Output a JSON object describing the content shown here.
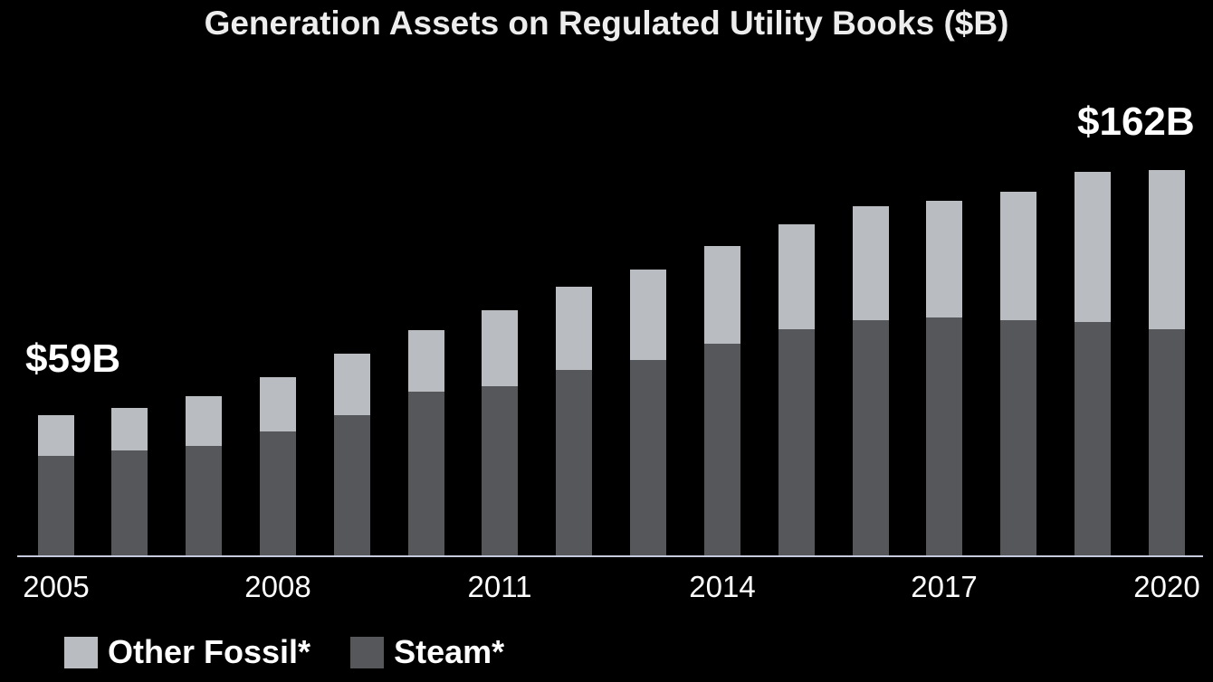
{
  "title": "Generation Assets on Regulated Utility Books ($B)",
  "chart_data": {
    "type": "bar",
    "stacked": true,
    "title": "Generation Assets on Regulated Utility Books ($B)",
    "background": "#000000",
    "axis_color": "#c5cade",
    "grid": false,
    "legend_position": "bottom-left",
    "ylim": [
      0,
      170
    ],
    "categories": [
      "2005",
      "2006",
      "2007",
      "2008",
      "2009",
      "2010",
      "2011",
      "2012",
      "2013",
      "2014",
      "2015",
      "2016",
      "2017",
      "2018",
      "2019",
      "2020"
    ],
    "series": [
      {
        "name": "Other Fossil*",
        "color": "#b9bcc1",
        "values": [
          17,
          18,
          21,
          23,
          26,
          26,
          32,
          35,
          38,
          41,
          44,
          48,
          49,
          54,
          63,
          67
        ]
      },
      {
        "name": "Steam*",
        "color": "#55575a",
        "values": [
          42,
          44,
          46,
          52,
          59,
          69,
          71,
          78,
          82,
          89,
          95,
          99,
          100,
          99,
          98,
          95
        ]
      }
    ],
    "totals": [
      59,
      62,
      67,
      75,
      85,
      95,
      103,
      113,
      120,
      130,
      139,
      147,
      149,
      153,
      161,
      162
    ],
    "x_tick_labels": [
      "2005",
      "2008",
      "2011",
      "2014",
      "2017",
      "2020"
    ],
    "annotations": [
      {
        "text": "$59B",
        "category": "2005",
        "position": "left"
      },
      {
        "text": "$162B",
        "category": "2020",
        "position": "top-right"
      }
    ]
  }
}
